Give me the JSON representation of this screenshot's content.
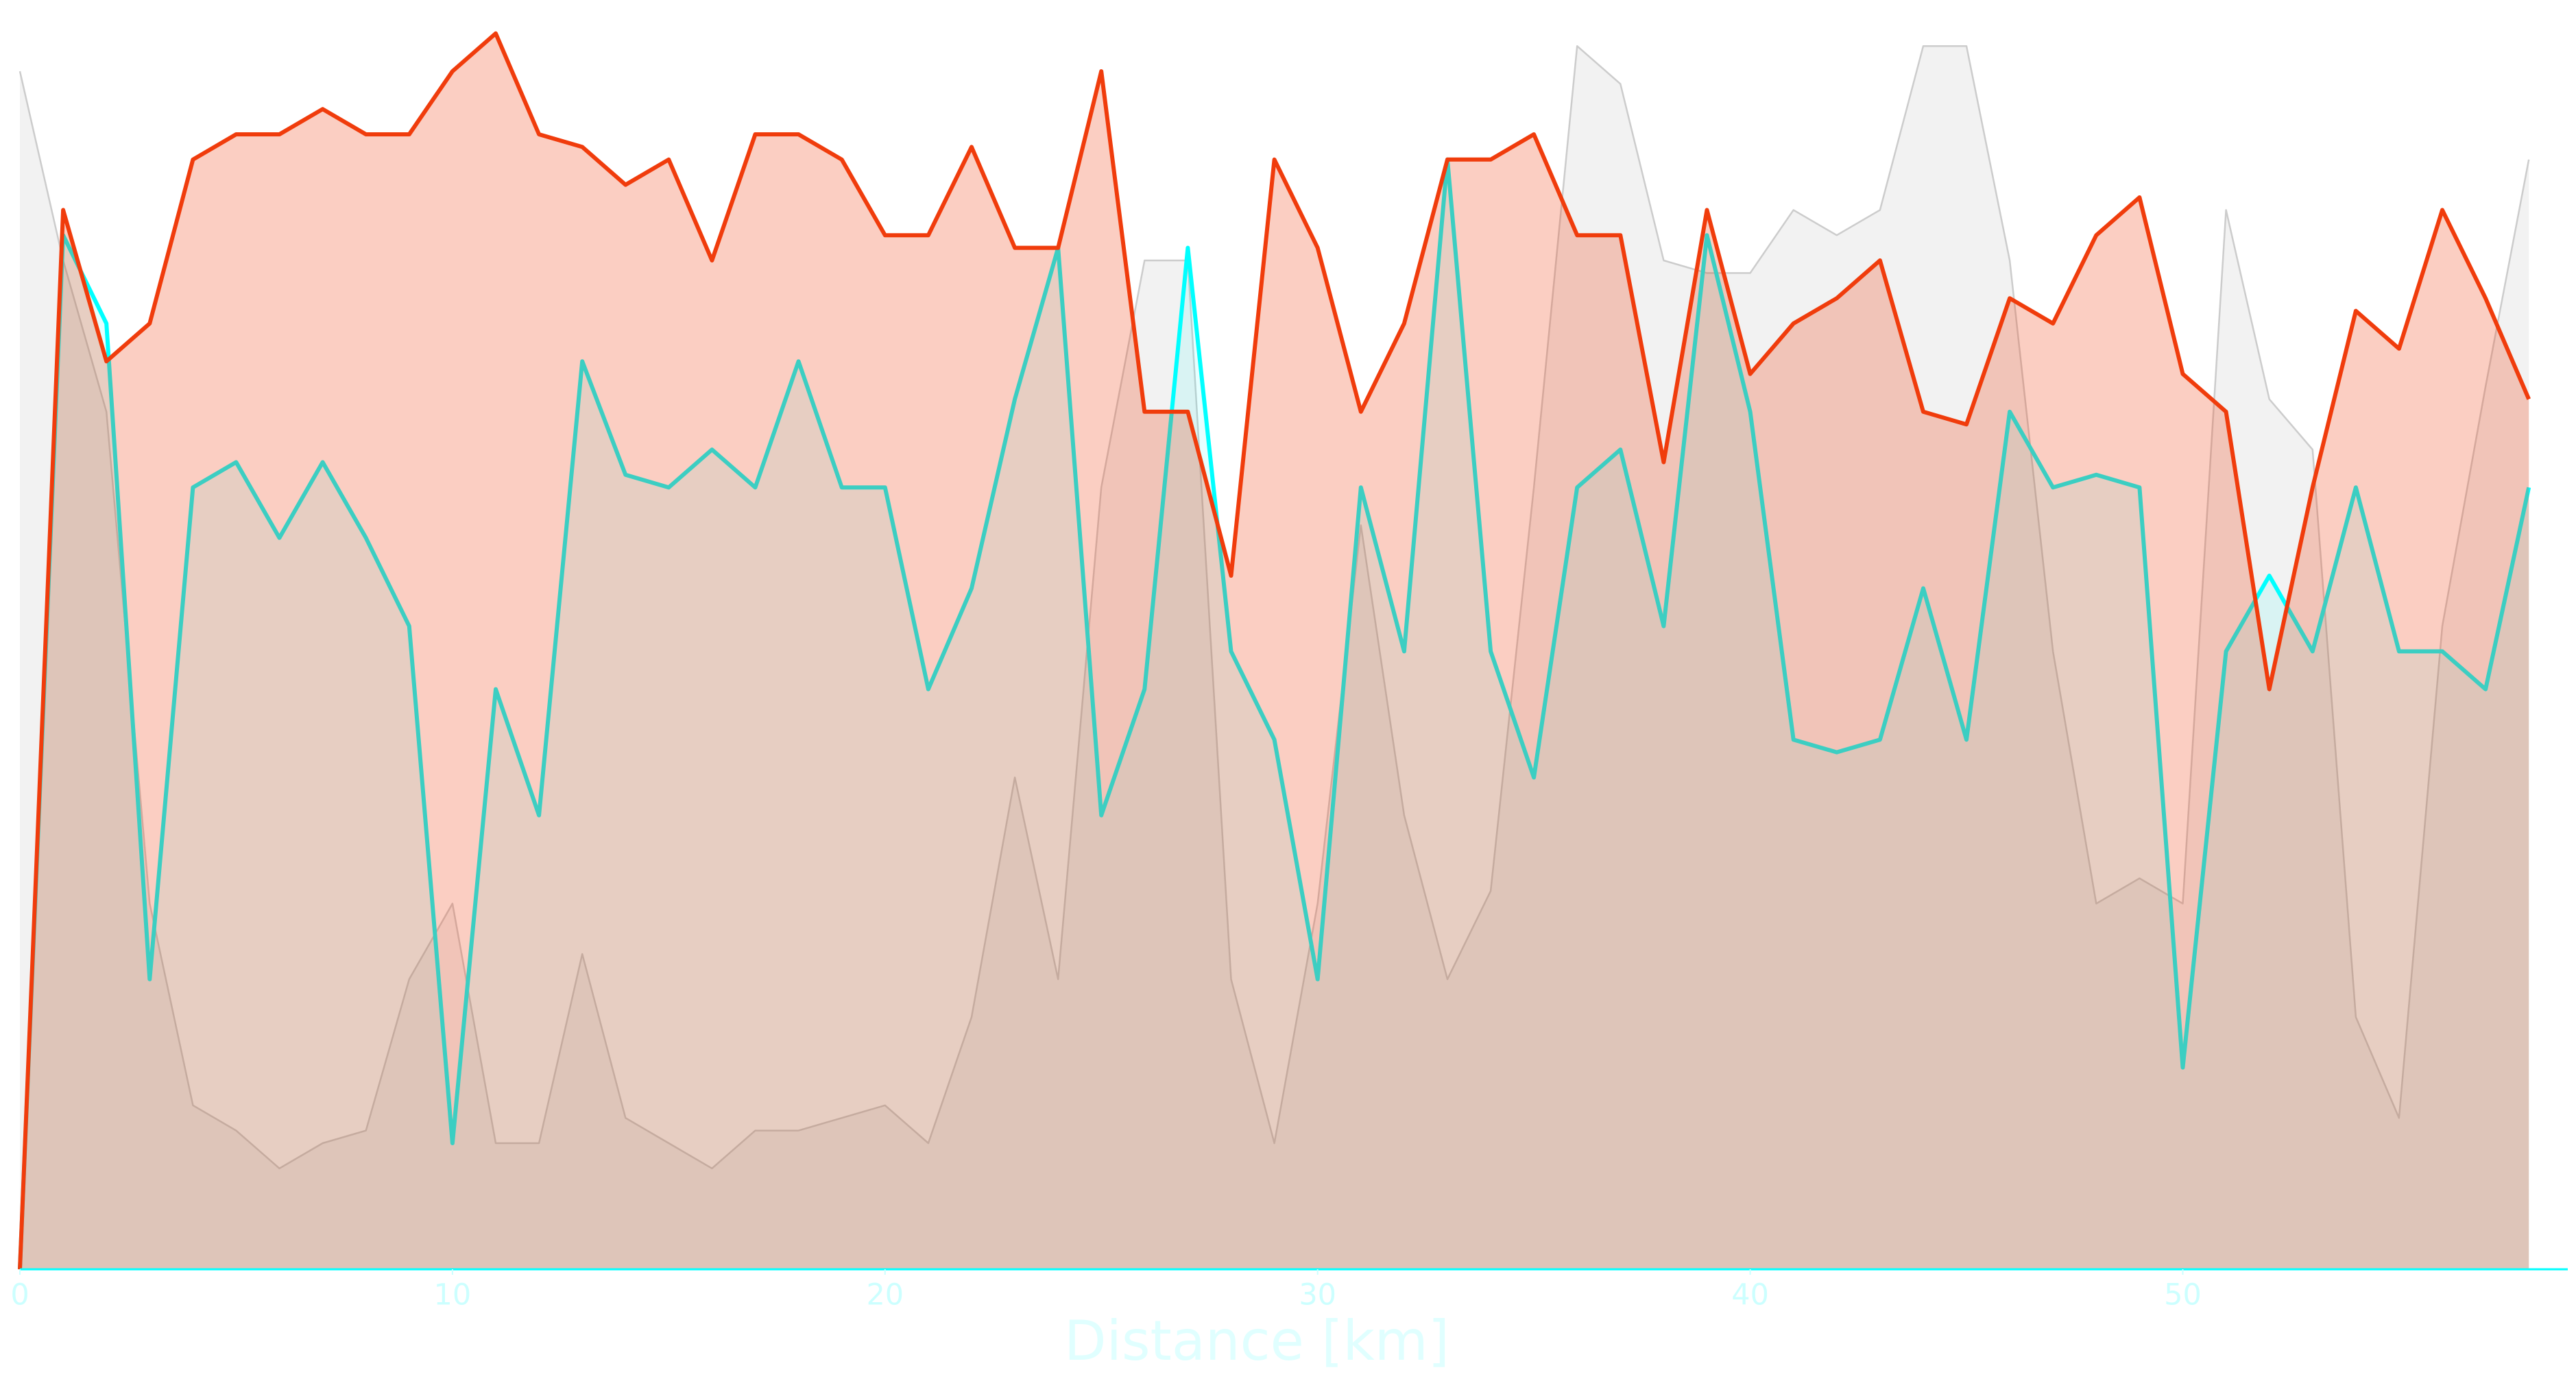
{
  "chart_data": {
    "type": "area-line",
    "x_label": "Distance [km]",
    "x": [
      0,
      1,
      2,
      3,
      4,
      5,
      6,
      7,
      8,
      9,
      10,
      11,
      12,
      13,
      14,
      15,
      16,
      17,
      18,
      19,
      20,
      21,
      22,
      23,
      24,
      25,
      26,
      27,
      28,
      29,
      30,
      31,
      32,
      33,
      34,
      35,
      36,
      37,
      38,
      39,
      40,
      41,
      42,
      43,
      44,
      45,
      46,
      47,
      48,
      49,
      50,
      51,
      52,
      53,
      54,
      55,
      56,
      57,
      58
    ],
    "xlim": [
      0,
      58.9
    ],
    "xticks": [
      0,
      10,
      20,
      30,
      40,
      50
    ],
    "ylim": [
      0,
      100
    ],
    "series": [
      {
        "color": "#f03c0c",
        "values": [
          0,
          84,
          72,
          75,
          88,
          90,
          90,
          92,
          90,
          90,
          95,
          98,
          90,
          89,
          86,
          88,
          80,
          90,
          90,
          88,
          82,
          82,
          89,
          81,
          81,
          95,
          68,
          68,
          55,
          88,
          81,
          68,
          75,
          88,
          88,
          90,
          82,
          82,
          64,
          84,
          71,
          75,
          77,
          80,
          68,
          67,
          77,
          75,
          82,
          85,
          71,
          68,
          46,
          62,
          76,
          73,
          84,
          77,
          69
        ]
      },
      {
        "color": "#00ffff",
        "values": [
          0,
          82,
          75,
          23,
          62,
          64,
          58,
          64,
          58,
          51,
          10,
          46,
          36,
          72,
          63,
          62,
          65,
          62,
          72,
          62,
          62,
          46,
          54,
          69,
          81,
          36,
          46,
          81,
          49,
          42,
          23,
          62,
          49,
          88,
          49,
          39,
          62,
          65,
          51,
          82,
          68,
          42,
          41,
          42,
          54,
          42,
          68,
          62,
          63,
          62,
          16,
          49,
          55,
          49,
          62,
          49,
          49,
          46,
          62
        ]
      },
      {
        "color": "#cccccc",
        "values": [
          95,
          80,
          68,
          29,
          13,
          11,
          8,
          10,
          11,
          23,
          29,
          10,
          10,
          25,
          12,
          10,
          8,
          11,
          11,
          12,
          13,
          10,
          20,
          39,
          23,
          62,
          80,
          80,
          23,
          10,
          29,
          59,
          36,
          23,
          30,
          62,
          97,
          94,
          80,
          79,
          79,
          84,
          82,
          84,
          97,
          97,
          80,
          49,
          29,
          31,
          29,
          84,
          69,
          65,
          20,
          12,
          51,
          70,
          88
        ]
      }
    ]
  }
}
